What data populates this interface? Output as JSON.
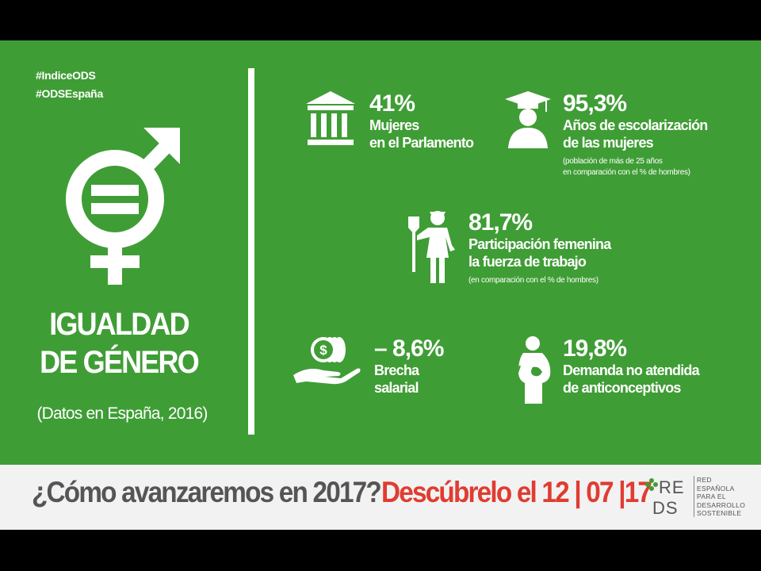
{
  "hashtags": [
    "#IndiceODS",
    "#ODSEspaña"
  ],
  "title_line1": "IGUALDAD",
  "title_line2": "DE GÉNERO",
  "subtitle": "(Datos en España, 2016)",
  "stats": {
    "parlamento": {
      "value": "41%",
      "label1": "Mujeres",
      "label2": "en el Parlamento",
      "icon": "parliament-icon"
    },
    "escolarizacion": {
      "value": "95,3%",
      "label1": "Años de escolarización",
      "label2": "de las mujeres",
      "note1": "(población de más de 25 años",
      "note2": "en comparación con el % de hombres)",
      "icon": "graduate-icon"
    },
    "trabajo": {
      "value": "81,7%",
      "label1": "Participación femenina",
      "label2": "la fuerza de trabajo",
      "note1": "(en comparación con el % de hombres)",
      "icon": "worker-woman-icon"
    },
    "brecha": {
      "value": "– 8,6%",
      "label1": "Brecha",
      "label2": "salarial",
      "icon": "coins-hand-icon"
    },
    "demanda": {
      "value": "19,8%",
      "label1": "Demanda no atendida",
      "label2": "de anticonceptivos",
      "icon": "pregnant-woman-icon"
    }
  },
  "bottom": {
    "question": "¿Cómo avanzaremos en 2017?",
    "cta": "Descúbrelo el 12 | 07 |17"
  },
  "logo": {
    "mark_line1": "RE",
    "mark_line2": "DS",
    "text": [
      "RED",
      "ESPAÑOLA",
      "PARA EL",
      "DESARROLLO",
      "SOSTENIBLE"
    ]
  },
  "colors": {
    "green": "#3f9d35",
    "red": "#e03c31",
    "grey_text": "#555555",
    "bar": "#f2f2f2"
  }
}
